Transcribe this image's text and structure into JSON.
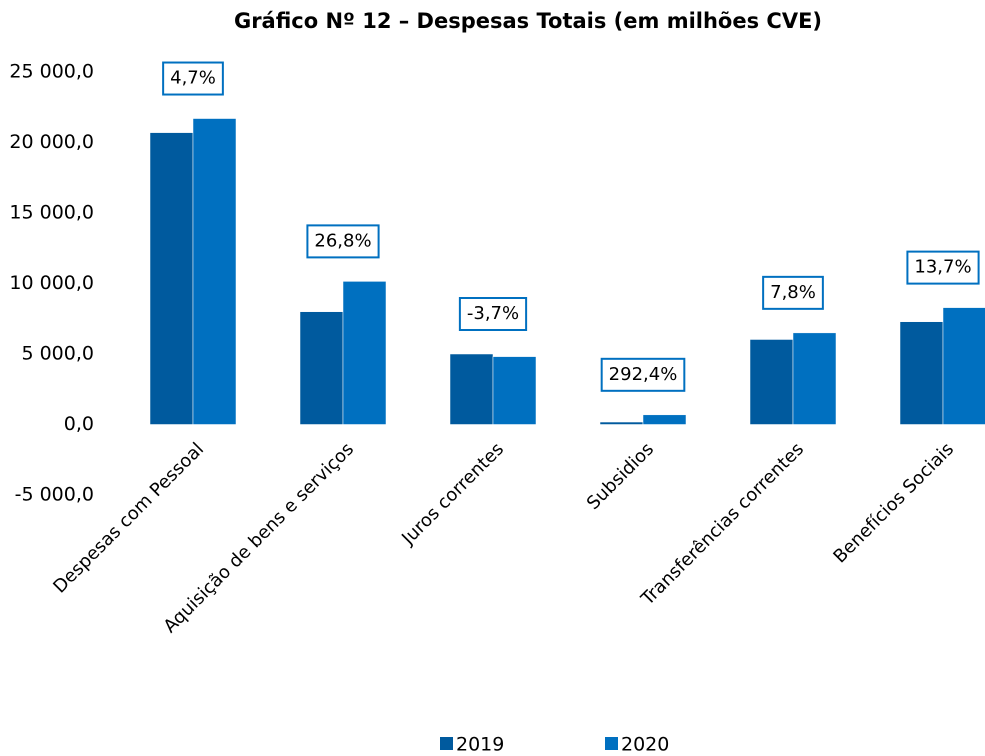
{
  "chart_data": {
    "type": "bar",
    "title": "Gráfico  Nº 12 – Despesas Totais (em milhões CVE)",
    "categories": [
      "Despesas com Pessoal",
      "Aquisição de bens e serviços",
      "Juros correntes",
      "Subsidios",
      "Transferências correntes",
      "Benefícios Sociais"
    ],
    "series": [
      {
        "name": "2019",
        "color": "#005a9e",
        "values": [
          20700,
          8000,
          5000,
          175,
          6030,
          7290
        ]
      },
      {
        "name": "2020",
        "color": "#0070c0",
        "values": [
          21700,
          10150,
          4815,
          687,
          6500,
          8290
        ]
      }
    ],
    "annotations": [
      "4,7%",
      "26,8%",
      "-3,7%",
      "292,4%",
      "7,8%",
      "13,7%"
    ],
    "ylim": [
      -5000,
      25000
    ],
    "yticks": [
      {
        "value": -5000,
        "label": "-5 000,0"
      },
      {
        "value": 0,
        "label": "0,0"
      },
      {
        "value": 5000,
        "label": "5 000,0"
      },
      {
        "value": 10000,
        "label": "10 000,0"
      },
      {
        "value": 15000,
        "label": "15 000,0"
      },
      {
        "value": 20000,
        "label": "20 000,0"
      },
      {
        "value": 25000,
        "label": "25 000,0"
      }
    ],
    "grid": false,
    "legend": "bottom"
  }
}
